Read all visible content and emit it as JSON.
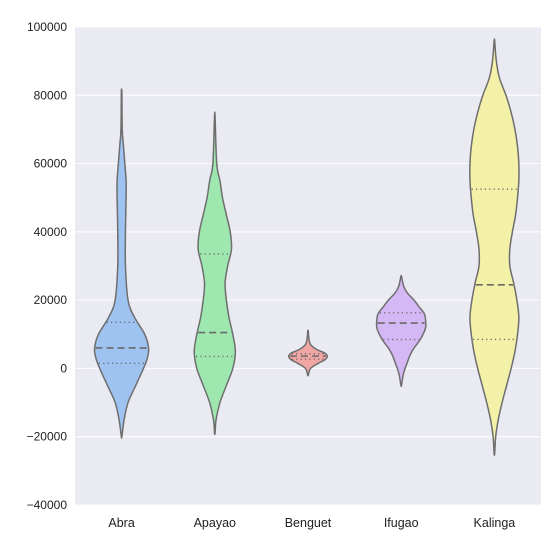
{
  "chart_data": {
    "type": "violin",
    "categories": [
      "Abra",
      "Apayao",
      "Benguet",
      "Ifugao",
      "Kalinga"
    ],
    "ylim": [
      -40000,
      100000
    ],
    "yticks": [
      -40000,
      -20000,
      0,
      20000,
      40000,
      60000,
      80000,
      100000
    ],
    "ytick_labels": [
      "−40000",
      "−20000",
      "0",
      "20000",
      "40000",
      "60000",
      "80000",
      "100000"
    ],
    "grid": true,
    "series": [
      {
        "category": "Abra",
        "color": "#9ec3f0",
        "min": -20000,
        "max": 81000,
        "q1": 1500,
        "median": 6000,
        "q3": 13500,
        "profile": [
          [
            -20000,
            0.2
          ],
          [
            -15000,
            2
          ],
          [
            -10000,
            5
          ],
          [
            -5000,
            11
          ],
          [
            0,
            17
          ],
          [
            3000,
            20
          ],
          [
            6000,
            21
          ],
          [
            10000,
            18
          ],
          [
            15000,
            10
          ],
          [
            20000,
            5
          ],
          [
            30000,
            3
          ],
          [
            40000,
            3
          ],
          [
            50000,
            3.5
          ],
          [
            55000,
            3.5
          ],
          [
            60000,
            2.5
          ],
          [
            65000,
            1.5
          ],
          [
            70000,
            0.5
          ],
          [
            81000,
            0.2
          ]
        ]
      },
      {
        "category": "Apayao",
        "color": "#9ee8b0",
        "min": -19000,
        "max": 74000,
        "q1": 3500,
        "median": 10500,
        "q3": 33500,
        "profile": [
          [
            -19000,
            0.2
          ],
          [
            -15000,
            1
          ],
          [
            -10000,
            4
          ],
          [
            -5000,
            9
          ],
          [
            0,
            14
          ],
          [
            5000,
            16
          ],
          [
            10000,
            14
          ],
          [
            15000,
            11
          ],
          [
            20000,
            9
          ],
          [
            25000,
            8
          ],
          [
            30000,
            10
          ],
          [
            35000,
            13
          ],
          [
            40000,
            12
          ],
          [
            45000,
            9
          ],
          [
            50000,
            6
          ],
          [
            55000,
            4
          ],
          [
            60000,
            1.5
          ],
          [
            74000,
            0.2
          ]
        ]
      },
      {
        "category": "Benguet",
        "color": "#f2a5a5",
        "min": -2000,
        "max": 11000,
        "q1": 2700,
        "median": 3600,
        "q3": 4300,
        "profile": [
          [
            -2000,
            0.2
          ],
          [
            0,
            2
          ],
          [
            1500,
            8
          ],
          [
            2500,
            13
          ],
          [
            3500,
            15
          ],
          [
            4500,
            13
          ],
          [
            5500,
            7
          ],
          [
            7000,
            2
          ],
          [
            9000,
            0.6
          ],
          [
            11000,
            0.2
          ]
        ]
      },
      {
        "category": "Ifugao",
        "color": "#d4b7f5",
        "min": -5000,
        "max": 27000,
        "q1": 8500,
        "median": 13300,
        "q3": 16300,
        "profile": [
          [
            -5000,
            0.2
          ],
          [
            -2000,
            1.5
          ],
          [
            0,
            3
          ],
          [
            2000,
            5
          ],
          [
            4000,
            7
          ],
          [
            6000,
            10
          ],
          [
            8000,
            14
          ],
          [
            10000,
            17
          ],
          [
            12000,
            19
          ],
          [
            14000,
            19
          ],
          [
            16000,
            18
          ],
          [
            18000,
            14
          ],
          [
            20000,
            10
          ],
          [
            22000,
            5
          ],
          [
            24000,
            2
          ],
          [
            27000,
            0.2
          ]
        ]
      },
      {
        "category": "Kalinga",
        "color": "#f3f1a8",
        "min": -25000,
        "max": 96000,
        "q1": 8500,
        "median": 24500,
        "q3": 52500,
        "profile": [
          [
            -25000,
            0.2
          ],
          [
            -20000,
            1
          ],
          [
            -15000,
            3
          ],
          [
            -10000,
            6
          ],
          [
            -5000,
            9.5
          ],
          [
            0,
            13
          ],
          [
            5000,
            16
          ],
          [
            10000,
            18
          ],
          [
            15000,
            19
          ],
          [
            20000,
            17.5
          ],
          [
            25000,
            15
          ],
          [
            30000,
            12
          ],
          [
            35000,
            12
          ],
          [
            40000,
            14
          ],
          [
            45000,
            16.5
          ],
          [
            50000,
            18
          ],
          [
            55000,
            19
          ],
          [
            60000,
            19
          ],
          [
            65000,
            18
          ],
          [
            70000,
            16
          ],
          [
            75000,
            13
          ],
          [
            80000,
            9
          ],
          [
            85000,
            4
          ],
          [
            90000,
            1.5
          ],
          [
            96000,
            0.2
          ]
        ]
      }
    ]
  },
  "style": {
    "plot_background": "#eaeaf2",
    "grid_color": "#ffffff",
    "outline_color": "#6e6e6e",
    "median_color": "#6a6a6a",
    "quartile_color": "#6a6a6a",
    "text_color": "#222222"
  }
}
